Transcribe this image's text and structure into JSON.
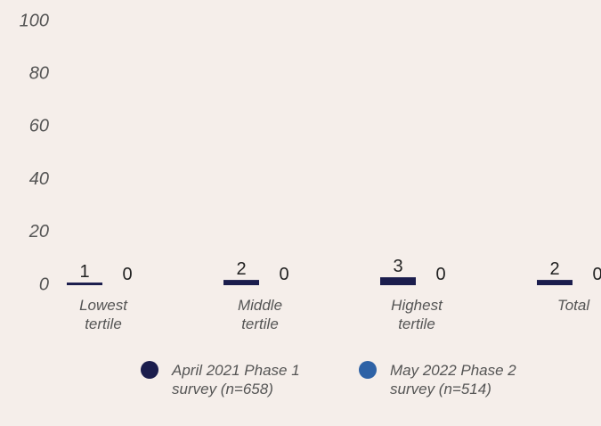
{
  "chart_data": {
    "type": "bar",
    "categories": [
      "Lowest tertile",
      "Middle tertile",
      "Highest tertile",
      "Total"
    ],
    "series": [
      {
        "name": "April 2021 Phase 1 survey (n=658)",
        "color": "#1b1d4d",
        "values": [
          1,
          2,
          3,
          2
        ]
      },
      {
        "name": "May 2022 Phase 2 survey (n=514)",
        "color": "#2e62a6",
        "values": [
          0,
          0,
          0,
          0
        ]
      }
    ],
    "ylim": [
      0,
      100
    ],
    "yticks": [
      0,
      20,
      40,
      60,
      80,
      100
    ],
    "grid": false
  }
}
